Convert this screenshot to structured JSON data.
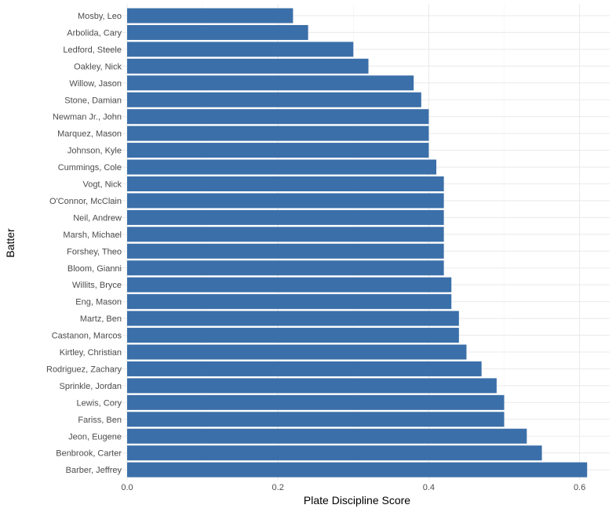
{
  "chart_data": {
    "type": "bar",
    "orientation": "horizontal",
    "xlabel": "Plate Discipline Score",
    "ylabel": "Batter",
    "xlim": [
      0,
      0.6
    ],
    "x_ticks": [
      "0.0",
      "0.2",
      "0.4",
      "0.6"
    ],
    "grid": true,
    "bar_color": "#3B6FA9",
    "categories": [
      "Mosby, Leo",
      "Arbolida, Cary",
      "Ledford, Steele",
      "Oakley, Nick",
      "Willow, Jason",
      "Stone, Damian",
      "Newman Jr., John",
      "Marquez, Mason",
      "Johnson, Kyle",
      "Cummings, Cole",
      "Vogt, Nick",
      "O'Connor, McClain",
      "Neil, Andrew",
      "Marsh, Michael",
      "Forshey, Theo",
      "Bloom, Gianni",
      "Willits, Bryce",
      "Eng, Mason",
      "Martz, Ben",
      "Castanon, Marcos",
      "Kirtley, Christian",
      "Rodriguez, Zachary",
      "Sprinkle, Jordan",
      "Lewis, Cory",
      "Fariss, Ben",
      "Jeon, Eugene",
      "Benbrook, Carter",
      "Barber, Jeffrey"
    ],
    "values": [
      0.22,
      0.24,
      0.3,
      0.32,
      0.38,
      0.39,
      0.4,
      0.4,
      0.4,
      0.41,
      0.42,
      0.42,
      0.42,
      0.42,
      0.42,
      0.42,
      0.43,
      0.43,
      0.44,
      0.44,
      0.45,
      0.47,
      0.49,
      0.5,
      0.5,
      0.53,
      0.55,
      0.61
    ]
  }
}
